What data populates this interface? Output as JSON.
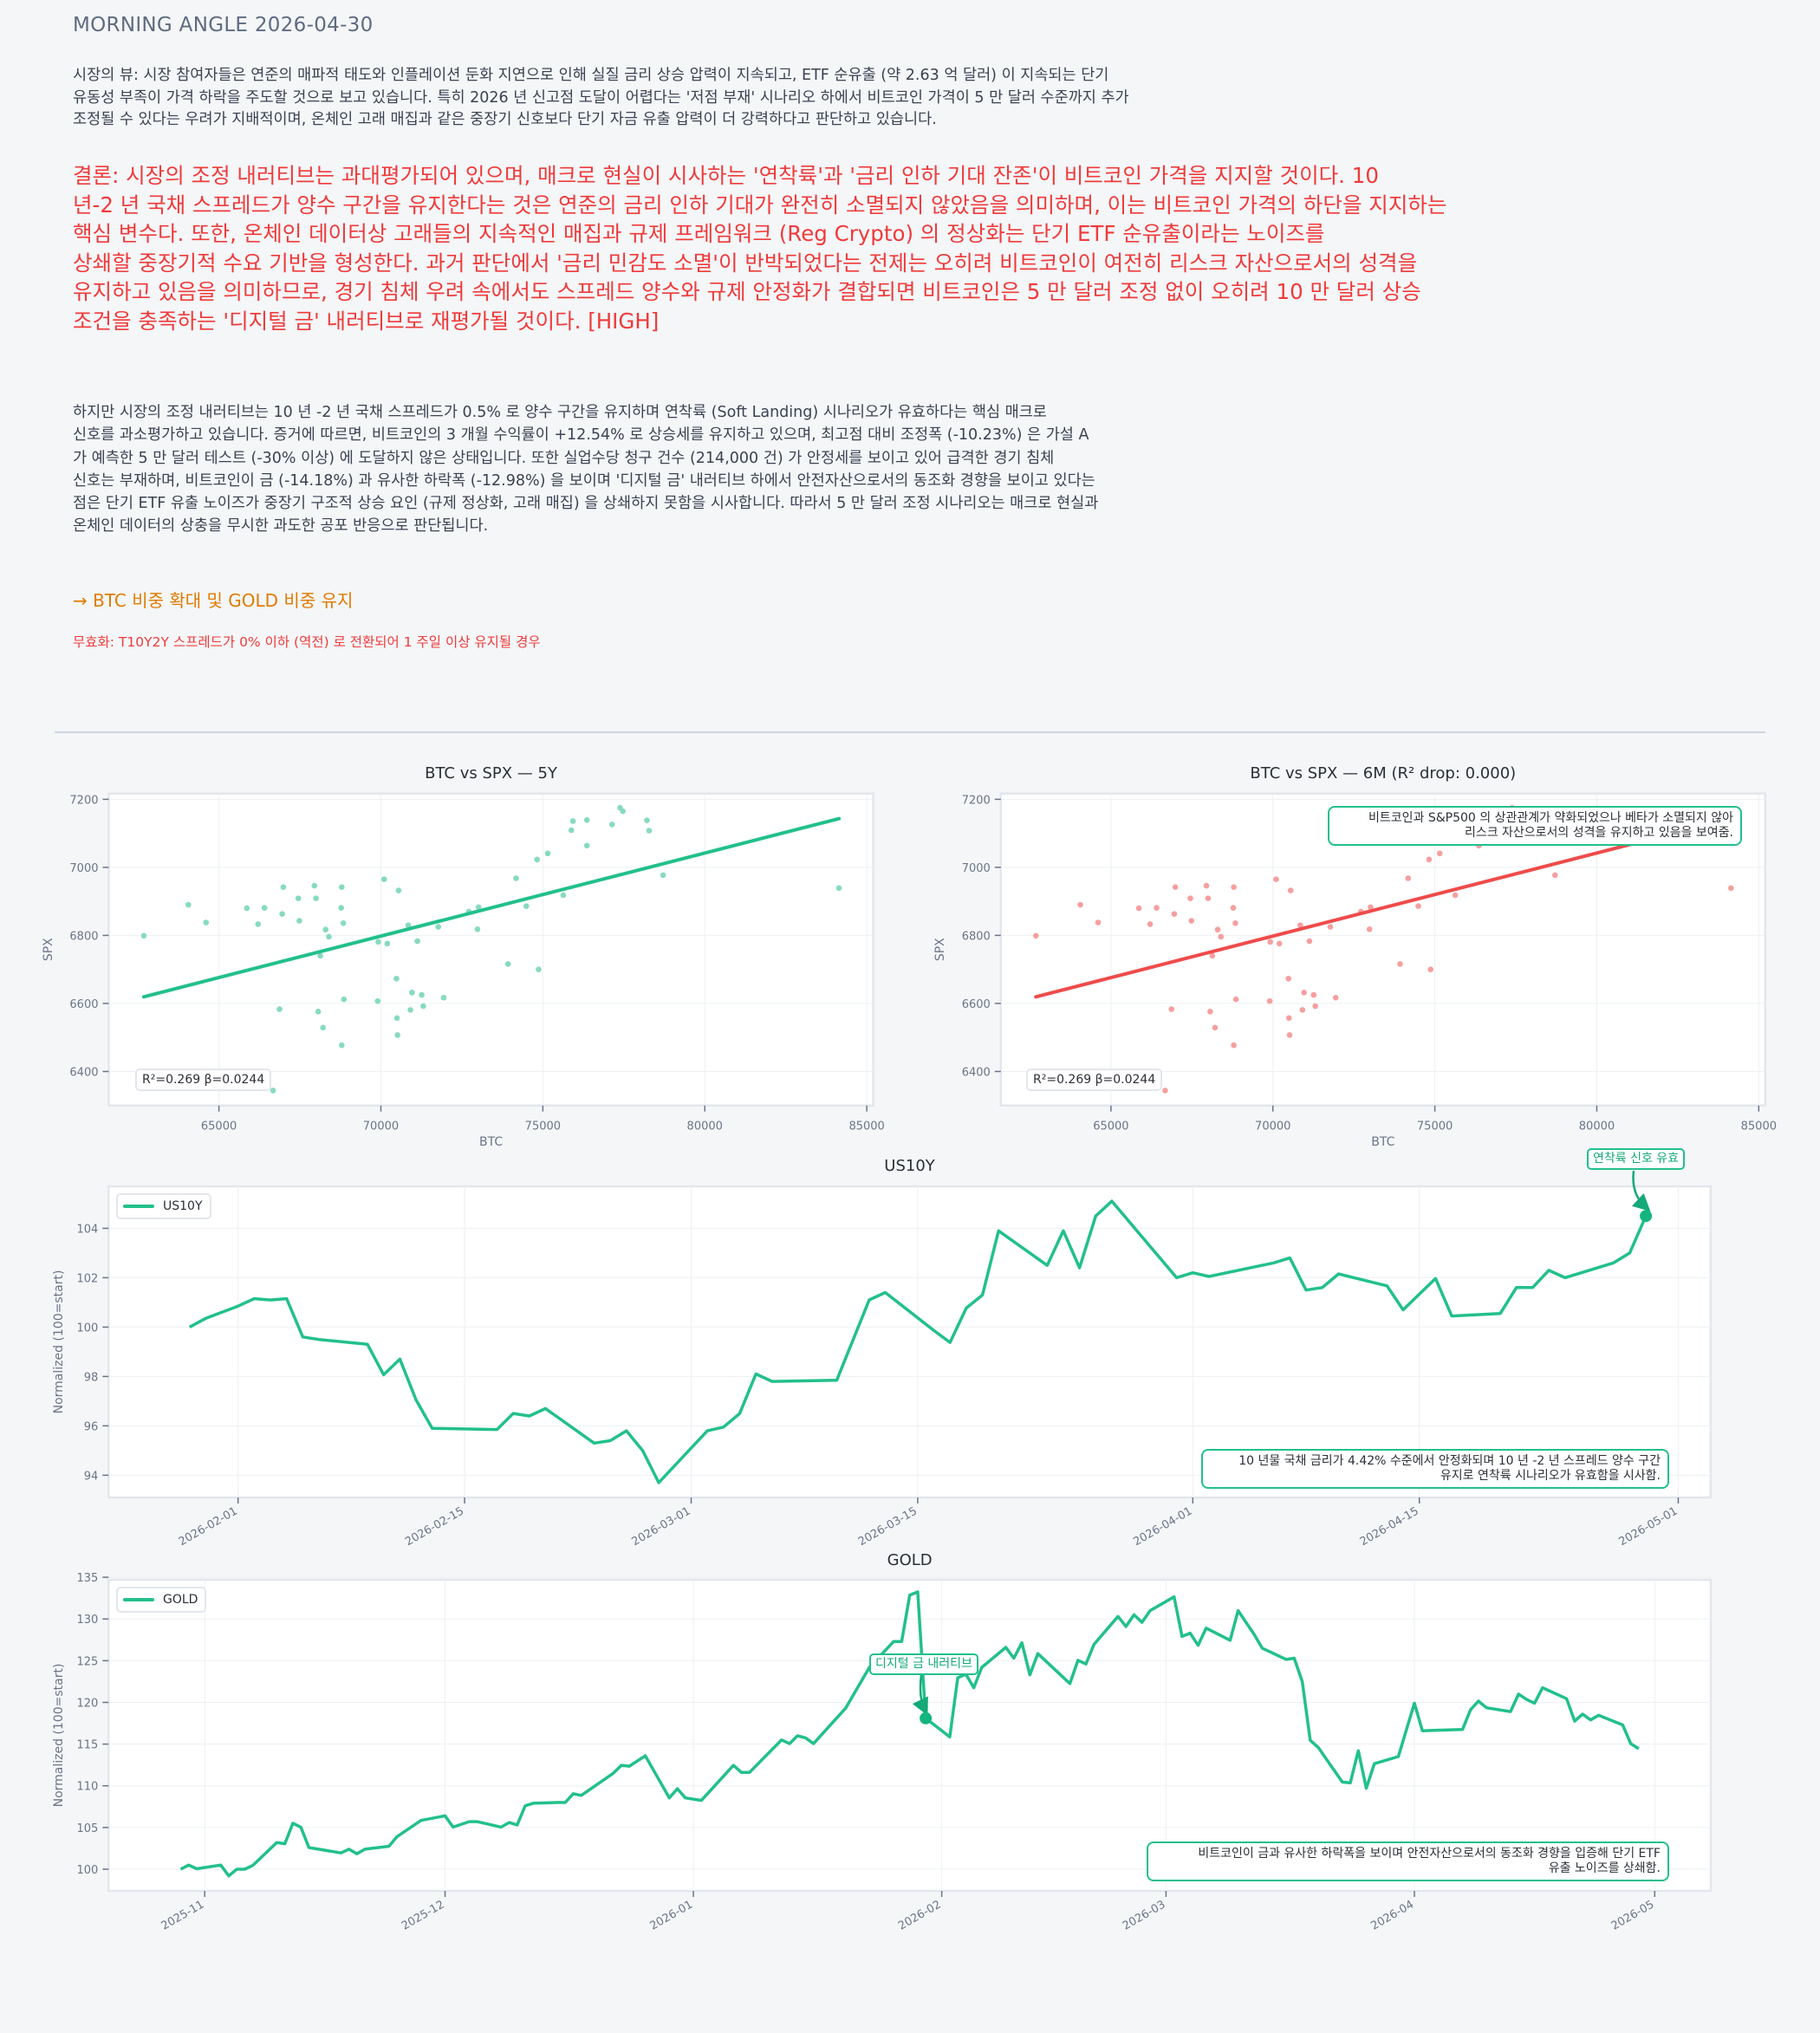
{
  "header": {
    "title": "MORNING ANGLE  2026-04-30"
  },
  "market_view": {
    "lines": [
      "시장의 뷰: 시장 참여자들은 연준의 매파적 태도와 인플레이션 둔화 지연으로 인해 실질 금리 상승 압력이 지속되고, ETF 순유출 (약 2.63 억 달러) 이 지속되는 단기",
      "유동성 부족이 가격 하락을 주도할 것으로 보고 있습니다. 특히 2026 년 신고점 도달이 어렵다는 '저점 부재' 시나리오 하에서 비트코인 가격이 5 만 달러 수준까지 추가",
      "조정될 수 있다는 우려가 지배적이며, 온체인 고래 매집과 같은 중장기 신호보다 단기 자금 유출 압력이 더 강력하다고 판단하고 있습니다."
    ]
  },
  "conclusion": {
    "lines": [
      "결론: 시장의 조정 내러티브는 과대평가되어 있으며, 매크로 현실이 시사하는 '연착륙'과 '금리 인하 기대 잔존'이 비트코인 가격을 지지할 것이다. 10",
      "년-2 년 국채 스프레드가 양수 구간을 유지한다는 것은 연준의 금리 인하 기대가 완전히 소멸되지 않았음을 의미하며, 이는 비트코인 가격의 하단을 지지하는",
      "핵심 변수다. 또한, 온체인 데이터상 고래들의 지속적인 매집과 규제 프레임워크 (Reg Crypto) 의 정상화는 단기 ETF 순유출이라는 노이즈를",
      "상쇄할 중장기적 수요 기반을 형성한다. 과거 판단에서 '금리 민감도 소멸'이 반박되었다는 전제는 오히려 비트코인이 여전히 리스크 자산으로서의 성격을",
      "유지하고 있음을 의미하므로, 경기 침체 우려 속에서도 스프레드 양수와 규제 안정화가 결합되면 비트코인은 5 만 달러 조정 없이 오히려 10 만 달러 상승",
      "조건을 충족하는 '디지털 금' 내러티브로 재평가될 것이다.  [HIGH]"
    ]
  },
  "counter": {
    "lines": [
      "하지만 시장의 조정 내러티브는 10 년 -2 년 국채 스프레드가 0.5% 로 양수 구간을 유지하며 연착륙 (Soft Landing) 시나리오가 유효하다는 핵심 매크로",
      "신호를 과소평가하고 있습니다. 증거에 따르면, 비트코인의 3 개월 수익률이 +12.54% 로 상승세를 유지하고 있으며, 최고점 대비 조정폭 (-10.23%) 은 가설 A",
      "가 예측한 5 만 달러 테스트 (-30% 이상) 에 도달하지 않은 상태입니다. 또한 실업수당 청구 건수 (214,000 건) 가 안정세를 보이고 있어 급격한 경기 침체",
      "신호는 부재하며, 비트코인이 금 (-14.18%) 과 유사한 하락폭 (-12.98%) 을 보이며 '디지털 금' 내러티브 하에서 안전자산으로서의 동조화 경향을 보이고 있다는",
      "점은 단기 ETF 유출 노이즈가 중장기 구조적 상승 요인 (규제 정상화, 고래 매집) 을 상쇄하지 못함을 시사합니다. 따라서 5 만 달러 조정 시나리오는 매크로 현실과",
      "온체인 데이터의 상충을 무시한 과도한 공포 반응으로 판단됩니다."
    ]
  },
  "action": "→ BTC 비중 확대 및 GOLD 비중 유지",
  "invalidation": "무효화: T10Y2Y 스프레드가 0% 이하 (역전) 로 전환되어 1 주일 이상 유지될 경우",
  "colors": {
    "background": "#f4f6f8",
    "accent_green": "#22c08a",
    "scatter_green": "#7fd9b8",
    "accent_red": "#ef4b4b",
    "scatter_red": "#f59a9a",
    "conclusion_red": "#f03a3a",
    "action_orange": "#e07b00"
  },
  "chart_data": [
    {
      "type": "scatter",
      "title": "BTC vs SPX — 5Y",
      "xlabel": "BTC",
      "ylabel": "SPX",
      "xlim": [
        61600,
        85200
      ],
      "ylim": [
        6300,
        7217
      ],
      "x_ticks": [
        "65000",
        "70000",
        "75000",
        "80000",
        "85000"
      ],
      "y_ticks": [
        "6400",
        "6600",
        "6800",
        "7000",
        "7200"
      ],
      "grid": true,
      "color": "#22c08a",
      "point_color": "#7fd9b8",
      "stats": "R²=0.269  β=0.0244",
      "fit": {
        "slope": 0.0244,
        "intercept": 5090
      },
      "points": [
        [
          62682,
          6799
        ],
        [
          64056,
          6890
        ],
        [
          64603,
          6838
        ],
        [
          65861,
          6880
        ],
        [
          66209,
          6833
        ],
        [
          66408,
          6881
        ],
        [
          66954,
          6863
        ],
        [
          66988,
          6942
        ],
        [
          66871,
          6583
        ],
        [
          67484,
          6843
        ],
        [
          67451,
          6909
        ],
        [
          67948,
          6946
        ],
        [
          67998,
          6909
        ],
        [
          68295,
          6817
        ],
        [
          68395,
          6796
        ],
        [
          68130,
          6740
        ],
        [
          68064,
          6576
        ],
        [
          68213,
          6529
        ],
        [
          68792,
          6942
        ],
        [
          68776,
          6881
        ],
        [
          68842,
          6836
        ],
        [
          68858,
          6612
        ],
        [
          68792,
          6477
        ],
        [
          66673,
          6344
        ],
        [
          70100,
          6965
        ],
        [
          70547,
          6932
        ],
        [
          69918,
          6781
        ],
        [
          70200,
          6776
        ],
        [
          69901,
          6607
        ],
        [
          70481,
          6673
        ],
        [
          70497,
          6557
        ],
        [
          70514,
          6507
        ],
        [
          70845,
          6830
        ],
        [
          71127,
          6783
        ],
        [
          70961,
          6632
        ],
        [
          71260,
          6625
        ],
        [
          70912,
          6581
        ],
        [
          71309,
          6592
        ],
        [
          71773,
          6825
        ],
        [
          71939,
          6617
        ],
        [
          72717,
          6870
        ],
        [
          73015,
          6883
        ],
        [
          72982,
          6818
        ],
        [
          73926,
          6716
        ],
        [
          74175,
          6968
        ],
        [
          74489,
          6886
        ],
        [
          74821,
          7023
        ],
        [
          74870,
          6700
        ],
        [
          75151,
          7041
        ],
        [
          75631,
          6918
        ],
        [
          75880,
          7109
        ],
        [
          75930,
          7136
        ],
        [
          76360,
          7139
        ],
        [
          76360,
          7064
        ],
        [
          77138,
          7126
        ],
        [
          77386,
          7175
        ],
        [
          77469,
          7165
        ],
        [
          78214,
          7138
        ],
        [
          78281,
          7108
        ],
        [
          78711,
          6977
        ],
        [
          84143,
          6939
        ]
      ]
    },
    {
      "type": "scatter",
      "title": "BTC vs SPX — 6M (R² drop: 0.000)",
      "xlabel": "BTC",
      "ylabel": "SPX",
      "xlim": [
        61600,
        85200
      ],
      "ylim": [
        6300,
        7217
      ],
      "x_ticks": [
        "65000",
        "70000",
        "75000",
        "80000",
        "85000"
      ],
      "y_ticks": [
        "6400",
        "6600",
        "6800",
        "7000",
        "7200"
      ],
      "grid": true,
      "color": "#ef4b4b",
      "point_color": "#f59a9a",
      "stats": "R²=0.269  β=0.0244",
      "fit": {
        "slope": 0.0244,
        "intercept": 5090
      },
      "annotation": [
        "비트코인과 S&P500 의 상관관계가 약화되었으나 베타가 소멸되지 않아",
        "리스크 자산으로서의 성격을 유지하고 있음을 보여줌."
      ],
      "points": [
        [
          62682,
          6799
        ],
        [
          64056,
          6890
        ],
        [
          64603,
          6838
        ],
        [
          65861,
          6880
        ],
        [
          66209,
          6833
        ],
        [
          66408,
          6881
        ],
        [
          66954,
          6863
        ],
        [
          66988,
          6942
        ],
        [
          66871,
          6583
        ],
        [
          67484,
          6843
        ],
        [
          67451,
          6909
        ],
        [
          67948,
          6946
        ],
        [
          67998,
          6909
        ],
        [
          68295,
          6817
        ],
        [
          68395,
          6796
        ],
        [
          68130,
          6740
        ],
        [
          68064,
          6576
        ],
        [
          68213,
          6529
        ],
        [
          68792,
          6942
        ],
        [
          68776,
          6881
        ],
        [
          68842,
          6836
        ],
        [
          68858,
          6612
        ],
        [
          68792,
          6477
        ],
        [
          66673,
          6344
        ],
        [
          70100,
          6965
        ],
        [
          70547,
          6932
        ],
        [
          69918,
          6781
        ],
        [
          70200,
          6776
        ],
        [
          69901,
          6607
        ],
        [
          70481,
          6673
        ],
        [
          70497,
          6557
        ],
        [
          70514,
          6507
        ],
        [
          70845,
          6830
        ],
        [
          71127,
          6783
        ],
        [
          70961,
          6632
        ],
        [
          71260,
          6625
        ],
        [
          70912,
          6581
        ],
        [
          71309,
          6592
        ],
        [
          71773,
          6825
        ],
        [
          71939,
          6617
        ],
        [
          72717,
          6870
        ],
        [
          73015,
          6883
        ],
        [
          72982,
          6818
        ],
        [
          73926,
          6716
        ],
        [
          74175,
          6968
        ],
        [
          74489,
          6886
        ],
        [
          74821,
          7023
        ],
        [
          74870,
          6700
        ],
        [
          75151,
          7041
        ],
        [
          75631,
          6918
        ],
        [
          75880,
          7109
        ],
        [
          75930,
          7136
        ],
        [
          76360,
          7139
        ],
        [
          76360,
          7064
        ],
        [
          77138,
          7126
        ],
        [
          77386,
          7175
        ],
        [
          77469,
          7165
        ],
        [
          78214,
          7138
        ],
        [
          78281,
          7108
        ],
        [
          78711,
          6977
        ],
        [
          84143,
          6939
        ]
      ]
    },
    {
      "type": "line",
      "title": "US10Y",
      "ylabel": "Normalized (100=start)",
      "xlim": [
        "2026-01-24",
        "2026-05-03"
      ],
      "ylim": [
        93.1,
        105.7
      ],
      "x_ticks": [
        "2026-02-01",
        "2026-02-15",
        "2026-03-01",
        "2026-03-15",
        "2026-04-01",
        "2026-04-15",
        "2026-05-01"
      ],
      "y_ticks": [
        "94",
        "96",
        "98",
        "100",
        "102",
        "104"
      ],
      "grid": true,
      "legend": "top-left",
      "series": [
        {
          "name": "US10Y",
          "color": "#22c08a",
          "x": [
            "2026-01-29",
            "2026-01-30",
            "2026-02-01",
            "2026-02-02",
            "2026-02-03",
            "2026-02-04",
            "2026-02-05",
            "2026-02-06",
            "2026-02-09",
            "2026-02-10",
            "2026-02-11",
            "2026-02-12",
            "2026-02-13",
            "2026-02-17",
            "2026-02-18",
            "2026-02-19",
            "2026-02-20",
            "2026-02-23",
            "2026-02-24",
            "2026-02-25",
            "2026-02-26",
            "2026-02-27",
            "2026-03-02",
            "2026-03-03",
            "2026-03-04",
            "2026-03-05",
            "2026-03-06",
            "2026-03-10",
            "2026-03-12",
            "2026-03-13",
            "2026-03-16",
            "2026-03-17",
            "2026-03-18",
            "2026-03-19",
            "2026-03-20",
            "2026-03-23",
            "2026-03-24",
            "2026-03-25",
            "2026-03-26",
            "2026-03-27",
            "2026-03-31",
            "2026-04-01",
            "2026-04-02",
            "2026-04-06",
            "2026-04-07",
            "2026-04-08",
            "2026-04-09",
            "2026-04-10",
            "2026-04-13",
            "2026-04-14",
            "2026-04-16",
            "2026-04-17",
            "2026-04-20",
            "2026-04-21",
            "2026-04-22",
            "2026-04-23",
            "2026-04-24",
            "2026-04-27",
            "2026-04-28",
            "2026-04-29"
          ],
          "y": [
            100.0,
            100.35,
            100.85,
            101.15,
            101.1,
            101.15,
            99.6,
            99.5,
            99.3,
            98.07,
            98.7,
            97.05,
            95.9,
            95.85,
            96.5,
            96.4,
            96.7,
            95.3,
            95.4,
            95.8,
            95.0,
            93.7,
            95.8,
            95.95,
            96.5,
            98.1,
            97.8,
            97.85,
            101.1,
            101.4,
            99.86,
            99.38,
            100.77,
            101.3,
            103.9,
            102.5,
            103.9,
            102.4,
            104.5,
            105.1,
            102.0,
            102.2,
            102.05,
            102.6,
            102.8,
            101.5,
            101.6,
            102.15,
            101.67,
            100.7,
            101.97,
            100.45,
            100.55,
            101.6,
            101.6,
            102.3,
            102.0,
            102.6,
            103.0,
            104.5
          ]
        }
      ],
      "highlight": {
        "x": "2026-04-29",
        "y": 104.5,
        "label": "연착륙 신호 유효"
      },
      "annotation": [
        "10 년물 국채 금리가 4.42% 수준에서 안정화되며 10 년 -2 년 스프레드 양수 구간",
        "유지로 연착륙 시나리오가 유효함을 시사함."
      ]
    },
    {
      "type": "line",
      "title": "GOLD",
      "ylabel": "Normalized (100=start)",
      "xlim": [
        "2025-10-20",
        "2026-05-08"
      ],
      "ylim": [
        97.4,
        134.7
      ],
      "x_ticks": [
        "2025-11",
        "2025-12",
        "2026-01",
        "2026-02",
        "2026-03",
        "2026-04",
        "2026-05"
      ],
      "y_ticks": [
        "100",
        "105",
        "110",
        "115",
        "120",
        "125",
        "130",
        "135"
      ],
      "grid": true,
      "legend": "top-left",
      "series": [
        {
          "name": "GOLD",
          "color": "#22c08a",
          "x": [
            "2025-10-29",
            "2025-10-30",
            "2025-10-31",
            "2025-11-03",
            "2025-11-04",
            "2025-11-05",
            "2025-11-06",
            "2025-11-07",
            "2025-11-10",
            "2025-11-11",
            "2025-11-12",
            "2025-11-13",
            "2025-11-14",
            "2025-11-18",
            "2025-11-19",
            "2025-11-20",
            "2025-11-21",
            "2025-11-24",
            "2025-11-25",
            "2025-11-28",
            "2025-12-01",
            "2025-12-02",
            "2025-12-04",
            "2025-12-05",
            "2025-12-08",
            "2025-12-09",
            "2025-12-10",
            "2025-12-11",
            "2025-12-12",
            "2025-12-15",
            "2025-12-16",
            "2025-12-17",
            "2025-12-18",
            "2025-12-22",
            "2025-12-23",
            "2025-12-24",
            "2025-12-26",
            "2025-12-29",
            "2025-12-30",
            "2025-12-31",
            "2026-01-02",
            "2026-01-06",
            "2026-01-07",
            "2026-01-08",
            "2026-01-12",
            "2026-01-13",
            "2026-01-14",
            "2026-01-15",
            "2026-01-16",
            "2026-01-20",
            "2026-01-23",
            "2026-01-26",
            "2026-01-27",
            "2026-01-28",
            "2026-01-29",
            "2026-01-30",
            "2026-02-02",
            "2026-02-03",
            "2026-02-04",
            "2026-02-05",
            "2026-02-06",
            "2026-02-09",
            "2026-02-10",
            "2026-02-11",
            "2026-02-12",
            "2026-02-13",
            "2026-02-17",
            "2026-02-18",
            "2026-02-19",
            "2026-02-20",
            "2026-02-23",
            "2026-02-24",
            "2026-02-25",
            "2026-02-26",
            "2026-02-27",
            "2026-03-02",
            "2026-03-03",
            "2026-03-04",
            "2026-03-05",
            "2026-03-06",
            "2026-03-09",
            "2026-03-10",
            "2026-03-12",
            "2026-03-13",
            "2026-03-16",
            "2026-03-17",
            "2026-03-18",
            "2026-03-19",
            "2026-03-20",
            "2026-03-23",
            "2026-03-24",
            "2026-03-25",
            "2026-03-26",
            "2026-03-27",
            "2026-03-30",
            "2026-04-01",
            "2026-04-02",
            "2026-04-07",
            "2026-04-08",
            "2026-04-09",
            "2026-04-10",
            "2026-04-13",
            "2026-04-14",
            "2026-04-15",
            "2026-04-16",
            "2026-04-17",
            "2026-04-20",
            "2026-04-21",
            "2026-04-22",
            "2026-04-23",
            "2026-04-24",
            "2026-04-27",
            "2026-04-28",
            "2026-04-29"
          ],
          "y": [
            100.0,
            100.5,
            100.05,
            100.5,
            99.2,
            100.0,
            100.0,
            100.45,
            103.2,
            103.05,
            105.5,
            105.05,
            102.6,
            101.95,
            102.4,
            101.85,
            102.4,
            102.75,
            103.9,
            105.85,
            106.4,
            105.05,
            105.7,
            105.7,
            105.05,
            105.6,
            105.3,
            107.6,
            107.9,
            108.0,
            108.0,
            109.05,
            108.85,
            111.5,
            112.45,
            112.35,
            113.6,
            108.55,
            109.65,
            108.55,
            108.25,
            112.45,
            111.6,
            111.6,
            115.5,
            115.05,
            116.0,
            115.75,
            115.05,
            119.3,
            124.25,
            127.3,
            127.3,
            132.85,
            133.25,
            118.1,
            115.85,
            122.95,
            123.4,
            121.75,
            124.2,
            126.6,
            125.3,
            127.15,
            123.3,
            125.85,
            122.25,
            125.05,
            124.6,
            126.95,
            130.3,
            129.1,
            130.5,
            129.6,
            131.0,
            132.65,
            127.9,
            128.3,
            126.85,
            128.9,
            127.45,
            131.0,
            128.15,
            126.5,
            125.15,
            125.3,
            122.5,
            115.45,
            114.6,
            110.45,
            110.35,
            114.2,
            109.7,
            112.65,
            113.5,
            119.9,
            116.6,
            116.75,
            119.1,
            120.15,
            119.35,
            118.9,
            121.0,
            120.35,
            119.9,
            121.75,
            120.45,
            117.75,
            118.6,
            117.9,
            118.45,
            117.3,
            115.05,
            114.45
          ]
        }
      ],
      "highlight": {
        "x": "2026-01-30",
        "y": 118.1,
        "label": "디지털 금 내러티브"
      },
      "annotation": [
        "비트코인이 금과 유사한 하락폭을 보이며 안전자산으로서의 동조화 경향을 입증해 단기 ETF",
        "유출 노이즈를 상쇄함."
      ]
    }
  ]
}
